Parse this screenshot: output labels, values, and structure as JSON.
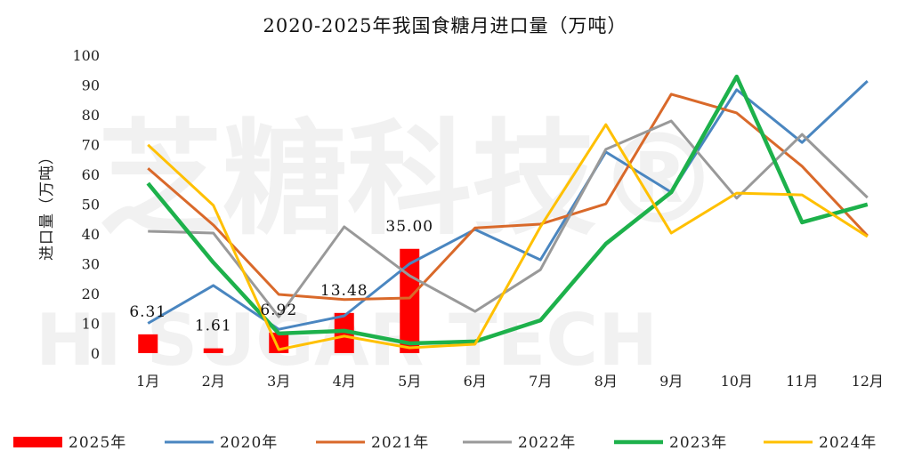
{
  "chart_data": {
    "type": "line",
    "title": "2020-2025年我国食糖月进口量（万吨）",
    "ylabel": "进口量（万吨）",
    "xlabel": "",
    "ylim": [
      0,
      100
    ],
    "yticks": [
      0,
      10,
      20,
      30,
      40,
      50,
      60,
      70,
      80,
      90,
      100
    ],
    "grid": false,
    "legend_position": "bottom",
    "categories": [
      "1月",
      "2月",
      "3月",
      "4月",
      "5月",
      "6月",
      "7月",
      "8月",
      "9月",
      "10月",
      "11月",
      "12月"
    ],
    "bar_series": {
      "name": "2025年",
      "color": "#ff0000",
      "values": [
        6.31,
        1.61,
        6.92,
        13.48,
        35.0
      ],
      "labels": [
        "6.31",
        "1.61",
        "6.92",
        "13.48",
        "35.00"
      ]
    },
    "series": [
      {
        "name": "2020年",
        "color": "#4a86c0",
        "values": [
          10,
          22.7,
          8,
          12.5,
          30,
          41.5,
          31.3,
          67.5,
          54,
          88.4,
          70.7,
          91.3
        ]
      },
      {
        "name": "2021年",
        "color": "#d9692a",
        "values": [
          62,
          43,
          19.7,
          18,
          18.5,
          42,
          43.3,
          50.1,
          86.9,
          80.6,
          62.7,
          39.4
        ]
      },
      {
        "name": "2022年",
        "color": "#999999",
        "values": [
          40.9,
          40.3,
          12.2,
          42.4,
          26,
          14,
          28,
          68.4,
          77.9,
          52,
          73.4,
          52.2
        ]
      },
      {
        "name": "2023年",
        "color": "#1db14b",
        "values": [
          57,
          30.4,
          6.6,
          7.5,
          3.3,
          3.9,
          11,
          36.7,
          54,
          92.8,
          43.9,
          49.9
        ]
      },
      {
        "name": "2024年",
        "color": "#ffc000",
        "values": [
          69.9,
          49.6,
          1.2,
          5.7,
          1.8,
          3,
          42.4,
          76.7,
          40.3,
          53.7,
          53.1,
          39.1
        ]
      }
    ]
  },
  "watermark": {
    "brand": "芝糖科技®",
    "english": "HI SUGAR TECH"
  }
}
